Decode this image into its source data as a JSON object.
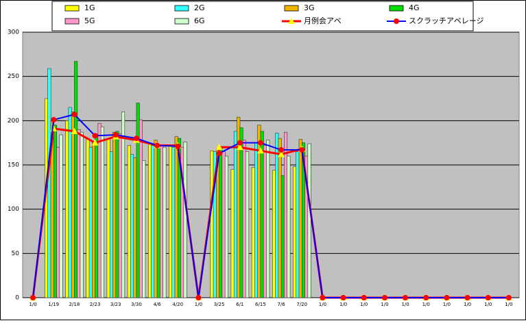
{
  "chart_data": {
    "type": "bar",
    "categories": [
      "1/0",
      "1/19",
      "2/18",
      "2/23",
      "3/23",
      "3/30",
      "4/6",
      "4/20",
      "1/0",
      "3/25",
      "6/1",
      "6/15",
      "7/6",
      "7/20",
      "1/0",
      "1/0",
      "1/0",
      "1/0",
      "1/0",
      "1/0",
      "1/0",
      "1/0",
      "1/0",
      "1/0"
    ],
    "series": [
      {
        "name": "1G",
        "type": "bar",
        "color": "#ffff00",
        "values": [
          null,
          225,
          200,
          180,
          180,
          172,
          175,
          172,
          null,
          166,
          145,
          147,
          144,
          148,
          null,
          null,
          null,
          null,
          null,
          null,
          null,
          null,
          null,
          null
        ]
      },
      {
        "name": "2G",
        "type": "bar",
        "color": "#33ffff",
        "values": [
          null,
          259,
          215,
          170,
          165,
          162,
          172,
          170,
          null,
          165,
          188,
          175,
          186,
          165,
          null,
          null,
          null,
          null,
          null,
          null,
          null,
          null,
          null,
          null
        ]
      },
      {
        "name": "3G",
        "type": "bar",
        "color": "#f0b400",
        "values": [
          null,
          200,
          210,
          175,
          187,
          158,
          178,
          182,
          null,
          168,
          204,
          195,
          180,
          179,
          null,
          null,
          null,
          null,
          null,
          null,
          null,
          null,
          null,
          null
        ]
      },
      {
        "name": "4G",
        "type": "bar",
        "color": "#00dd00",
        "values": [
          null,
          195,
          267,
          185,
          188,
          220,
          168,
          180,
          null,
          170,
          192,
          188,
          138,
          175,
          null,
          null,
          null,
          null,
          null,
          null,
          null,
          null,
          null,
          null
        ]
      },
      {
        "name": "5G",
        "type": "bar",
        "color": "#ff99cc",
        "values": [
          null,
          170,
          190,
          197,
          185,
          201,
          172,
          170,
          null,
          165,
          178,
          172,
          187,
          160,
          null,
          null,
          null,
          null,
          null,
          null,
          null,
          null,
          null,
          null
        ]
      },
      {
        "name": "6G",
        "type": "bar",
        "color": "#ccffcc",
        "values": [
          null,
          184,
          187,
          193,
          210,
          155,
          170,
          176,
          null,
          160,
          165,
          178,
          160,
          174,
          null,
          null,
          null,
          null,
          null,
          null,
          null,
          null,
          null,
          null
        ]
      },
      {
        "name": "月例会アベ",
        "type": "line",
        "color": "#ff0000",
        "marker_color": "#ffff00",
        "marker": "triangle",
        "values": [
          0,
          191,
          188,
          175,
          182,
          178,
          172,
          172,
          0,
          170,
          170,
          166,
          162,
          168,
          0,
          0,
          0,
          0,
          0,
          0,
          0,
          0,
          0,
          0
        ]
      },
      {
        "name": "スクラッチアベレージ",
        "type": "line",
        "color": "#0000ff",
        "marker_color": "#ff0000",
        "marker": "circle",
        "values": [
          0,
          201,
          207,
          183,
          184,
          180,
          172,
          171,
          0,
          163,
          175,
          175,
          167,
          167,
          0,
          0,
          0,
          0,
          0,
          0,
          0,
          0,
          0,
          0
        ]
      }
    ],
    "ylim": [
      0,
      300
    ],
    "yticks": [
      0,
      50,
      100,
      150,
      200,
      250,
      300
    ],
    "grid": true,
    "legend": "top"
  }
}
